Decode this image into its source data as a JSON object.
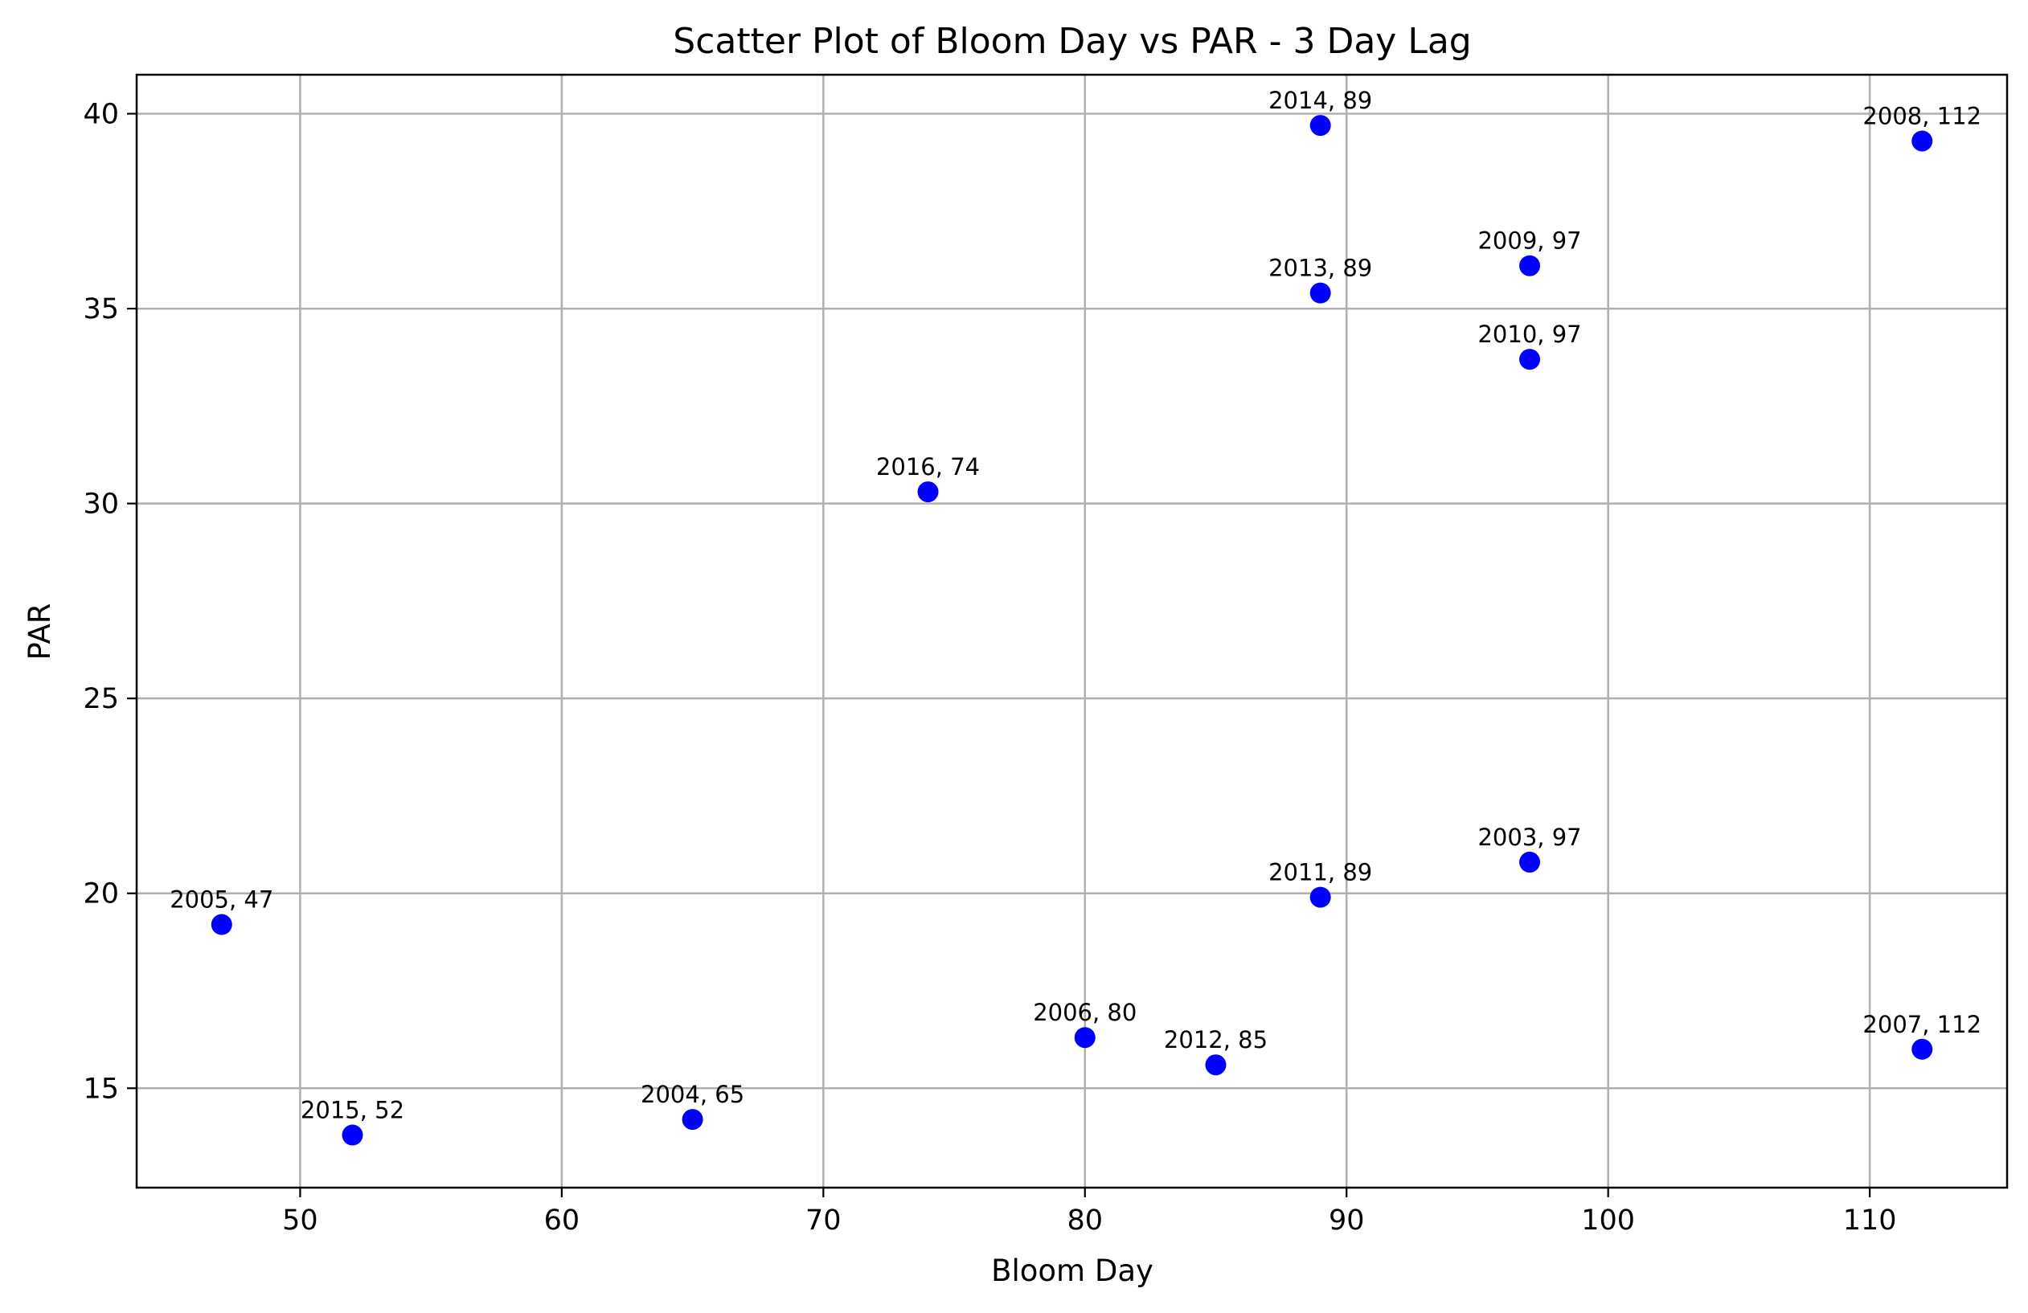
{
  "chart_data": {
    "type": "scatter",
    "title": "Scatter Plot of Bloom Day vs PAR - 3 Day Lag",
    "xlabel": "Bloom Day",
    "ylabel": "PAR",
    "xlim": [
      43.75,
      115.25
    ],
    "ylim": [
      12.45,
      41.0
    ],
    "xticks": [
      50,
      60,
      70,
      80,
      90,
      100,
      110
    ],
    "yticks": [
      15,
      20,
      25,
      30,
      35,
      40
    ],
    "grid": true,
    "point_color": "#0000ff",
    "points": [
      {
        "x": 97,
        "y": 20.8,
        "label": "2003, 97"
      },
      {
        "x": 65,
        "y": 14.2,
        "label": "2004, 65"
      },
      {
        "x": 47,
        "y": 19.2,
        "label": "2005, 47"
      },
      {
        "x": 80,
        "y": 16.3,
        "label": "2006, 80"
      },
      {
        "x": 112,
        "y": 16.0,
        "label": "2007, 112"
      },
      {
        "x": 112,
        "y": 39.3,
        "label": "2008, 112"
      },
      {
        "x": 97,
        "y": 36.1,
        "label": "2009, 97"
      },
      {
        "x": 97,
        "y": 33.7,
        "label": "2010, 97"
      },
      {
        "x": 89,
        "y": 19.9,
        "label": "2011, 89"
      },
      {
        "x": 85,
        "y": 15.6,
        "label": "2012, 85"
      },
      {
        "x": 89,
        "y": 35.4,
        "label": "2013, 89"
      },
      {
        "x": 89,
        "y": 39.7,
        "label": "2014, 89"
      },
      {
        "x": 52,
        "y": 13.8,
        "label": "2015, 52"
      },
      {
        "x": 74,
        "y": 30.3,
        "label": "2016, 74"
      }
    ]
  }
}
